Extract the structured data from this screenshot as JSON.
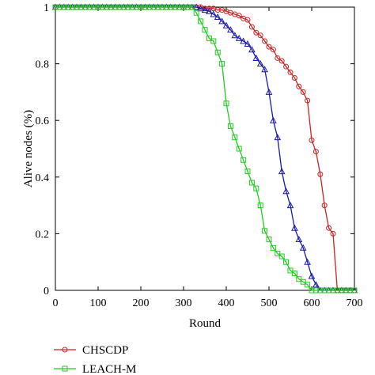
{
  "chart_data": {
    "type": "line",
    "xlabel": "Round",
    "ylabel": "Alive nodes (%)",
    "xlim": [
      0,
      700
    ],
    "ylim": [
      0,
      1
    ],
    "xticks": [
      0,
      100,
      200,
      300,
      400,
      500,
      600,
      700
    ],
    "yticks": [
      0,
      0.2,
      0.4,
      0.6,
      0.8,
      1
    ],
    "xtick_labels": [
      "0",
      "100",
      "200",
      "300",
      "400",
      "500",
      "600",
      "700"
    ],
    "ytick_labels": [
      "0",
      "0.2",
      "0.4",
      "0.6",
      "0.8",
      "1"
    ],
    "grid": false,
    "legend": "bottom-left, below plot",
    "series": [
      {
        "name": "CHSCDP",
        "color": "#cc2222",
        "marker": "circle",
        "x": [
          0,
          10,
          20,
          30,
          40,
          50,
          60,
          70,
          80,
          90,
          100,
          110,
          120,
          130,
          140,
          150,
          160,
          170,
          180,
          190,
          200,
          210,
          220,
          230,
          240,
          250,
          260,
          270,
          280,
          290,
          300,
          310,
          320,
          330,
          340,
          350,
          360,
          370,
          380,
          390,
          400,
          410,
          420,
          430,
          440,
          450,
          460,
          470,
          480,
          490,
          500,
          510,
          520,
          530,
          540,
          550,
          560,
          570,
          580,
          590,
          600,
          610,
          620,
          630,
          640,
          650,
          660,
          670,
          680,
          690,
          700
        ],
        "y": [
          1,
          1,
          1,
          1,
          1,
          1,
          1,
          1,
          1,
          1,
          1,
          1,
          1,
          1,
          1,
          1,
          1,
          1,
          1,
          1,
          1,
          1,
          1,
          1,
          1,
          1,
          1,
          1,
          1,
          1,
          1,
          1,
          1,
          1,
          1,
          0.995,
          0.995,
          0.995,
          0.99,
          0.99,
          0.985,
          0.98,
          0.975,
          0.97,
          0.96,
          0.955,
          0.93,
          0.91,
          0.9,
          0.88,
          0.86,
          0.85,
          0.82,
          0.81,
          0.79,
          0.77,
          0.75,
          0.72,
          0.7,
          0.67,
          0.53,
          0.49,
          0.41,
          0.3,
          0.22,
          0.2,
          0,
          0,
          0,
          0,
          0
        ]
      },
      {
        "name": "",
        "color": "#1a1aa8",
        "marker": "triangle",
        "x": [
          0,
          10,
          20,
          30,
          40,
          50,
          60,
          70,
          80,
          90,
          100,
          110,
          120,
          130,
          140,
          150,
          160,
          170,
          180,
          190,
          200,
          210,
          220,
          230,
          240,
          250,
          260,
          270,
          280,
          290,
          300,
          310,
          320,
          330,
          340,
          350,
          360,
          370,
          380,
          390,
          400,
          410,
          420,
          430,
          440,
          450,
          460,
          470,
          480,
          490,
          500,
          510,
          520,
          530,
          540,
          550,
          560,
          570,
          580,
          590,
          600,
          610,
          620,
          630,
          640,
          650,
          660,
          670,
          680,
          690,
          700
        ],
        "y": [
          1,
          1,
          1,
          1,
          1,
          1,
          1,
          1,
          1,
          1,
          1,
          1,
          1,
          1,
          1,
          1,
          1,
          1,
          1,
          1,
          1,
          1,
          1,
          1,
          1,
          1,
          1,
          1,
          1,
          1,
          1,
          1,
          1,
          1,
          0.995,
          0.99,
          0.985,
          0.975,
          0.965,
          0.95,
          0.935,
          0.92,
          0.9,
          0.89,
          0.88,
          0.87,
          0.85,
          0.82,
          0.8,
          0.78,
          0.7,
          0.6,
          0.54,
          0.42,
          0.35,
          0.3,
          0.22,
          0.18,
          0.15,
          0.1,
          0.05,
          0.02,
          0,
          0,
          0,
          0,
          0,
          0,
          0,
          0,
          0
        ]
      },
      {
        "name": "LEACH-M",
        "color": "#22cc22",
        "marker": "square",
        "x": [
          0,
          10,
          20,
          30,
          40,
          50,
          60,
          70,
          80,
          90,
          100,
          110,
          120,
          130,
          140,
          150,
          160,
          170,
          180,
          190,
          200,
          210,
          220,
          230,
          240,
          250,
          260,
          270,
          280,
          290,
          300,
          310,
          320,
          330,
          340,
          350,
          360,
          370,
          380,
          390,
          400,
          410,
          420,
          430,
          440,
          450,
          460,
          470,
          480,
          490,
          500,
          510,
          520,
          530,
          540,
          550,
          560,
          570,
          580,
          590,
          600,
          610,
          620,
          630,
          640,
          650,
          660,
          670,
          680,
          690,
          700
        ],
        "y": [
          1,
          1,
          1,
          1,
          1,
          1,
          1,
          1,
          1,
          1,
          1,
          1,
          1,
          1,
          1,
          1,
          1,
          1,
          1,
          1,
          1,
          1,
          1,
          1,
          1,
          1,
          1,
          1,
          1,
          1,
          1,
          1,
          1,
          0.98,
          0.95,
          0.92,
          0.89,
          0.88,
          0.84,
          0.8,
          0.66,
          0.58,
          0.54,
          0.5,
          0.46,
          0.42,
          0.38,
          0.36,
          0.3,
          0.21,
          0.18,
          0.15,
          0.13,
          0.12,
          0.1,
          0.07,
          0.06,
          0.04,
          0.03,
          0.02,
          0,
          0,
          0,
          0,
          0,
          0,
          0,
          0,
          0,
          0,
          0
        ]
      }
    ]
  }
}
